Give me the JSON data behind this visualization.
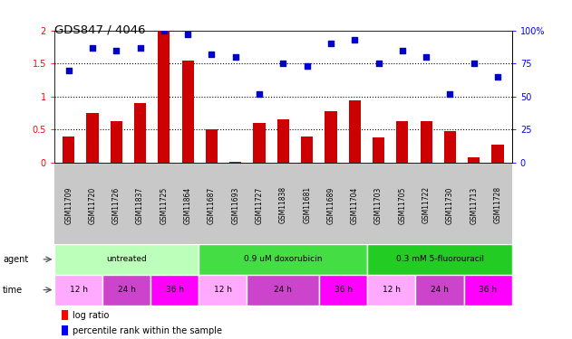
{
  "title": "GDS847 / 4046",
  "samples": [
    "GSM11709",
    "GSM11720",
    "GSM11726",
    "GSM11837",
    "GSM11725",
    "GSM11864",
    "GSM11687",
    "GSM11693",
    "GSM11727",
    "GSM11838",
    "GSM11681",
    "GSM11689",
    "GSM11704",
    "GSM11703",
    "GSM11705",
    "GSM11722",
    "GSM11730",
    "GSM11713",
    "GSM11728"
  ],
  "log_ratio": [
    0.4,
    0.75,
    0.63,
    0.9,
    2.0,
    1.55,
    0.5,
    0.02,
    0.6,
    0.65,
    0.4,
    0.78,
    0.95,
    0.38,
    0.63,
    0.63,
    0.48,
    0.08,
    0.27
  ],
  "percentile_rank": [
    70,
    87,
    85,
    87,
    100,
    97,
    82,
    80,
    52,
    75,
    73,
    90,
    93,
    75,
    85,
    80,
    52,
    75,
    65
  ],
  "bar_color": "#cc0000",
  "scatter_color": "#0000cc",
  "dotted_lines": [
    0.5,
    1.0,
    1.5
  ],
  "ylim_left": [
    0,
    2
  ],
  "yticks_left": [
    0,
    0.5,
    1.0,
    1.5,
    2.0
  ],
  "ytick_labels_left": [
    "0",
    "0.5",
    "1",
    "1.5",
    "2"
  ],
  "ylim_right": [
    0,
    100
  ],
  "yticks_right": [
    0,
    25,
    50,
    75,
    100
  ],
  "ytick_labels_right": [
    "0",
    "25",
    "50",
    "75",
    "100%"
  ],
  "agent_defs": [
    [
      0,
      6,
      "untreated",
      "#bbffbb"
    ],
    [
      6,
      7,
      "0.9 uM doxorubicin",
      "#44dd44"
    ],
    [
      13,
      6,
      "0.3 mM 5-fluorouracil",
      "#22cc22"
    ]
  ],
  "time_defs": [
    [
      0,
      2,
      "12 h",
      "#ffaaff"
    ],
    [
      2,
      2,
      "24 h",
      "#cc44cc"
    ],
    [
      4,
      2,
      "36 h",
      "#ff00ff"
    ],
    [
      6,
      2,
      "12 h",
      "#ffaaff"
    ],
    [
      8,
      3,
      "24 h",
      "#cc44cc"
    ],
    [
      11,
      2,
      "36 h",
      "#ff00ff"
    ],
    [
      13,
      2,
      "12 h",
      "#ffaaff"
    ],
    [
      15,
      2,
      "24 h",
      "#cc44cc"
    ],
    [
      17,
      2,
      "36 h",
      "#ff00ff"
    ]
  ],
  "tick_bg_color": "#c8c8c8",
  "bar_width": 0.5,
  "scatter_size": 16
}
